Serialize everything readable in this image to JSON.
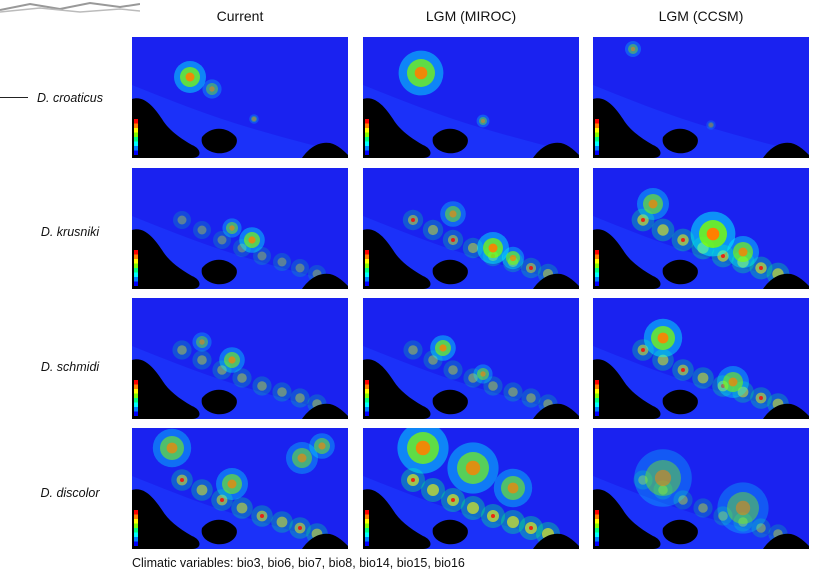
{
  "columns": [
    "Current",
    "LGM (MIROC)",
    "LGM (CCSM)"
  ],
  "rows": [
    {
      "species": "D. croaticus"
    },
    {
      "species": "D. krusniki"
    },
    {
      "species": "D. schmidi"
    },
    {
      "species": "D. discolor"
    }
  ],
  "caption": "Climatic variables: bio3, bio6, bio7, bio8, bio14, bio15, bio16",
  "colors": {
    "background": "#1a22f0",
    "low_suitability": "#1a22f0",
    "land_mask": "#000000",
    "high_suitability": "#ff2a00"
  },
  "color_scale": [
    "#ff0000",
    "#ff8000",
    "#ffff00",
    "#80ff00",
    "#00ff80",
    "#00ffff",
    "#0080ff",
    "#0000ff"
  ]
}
